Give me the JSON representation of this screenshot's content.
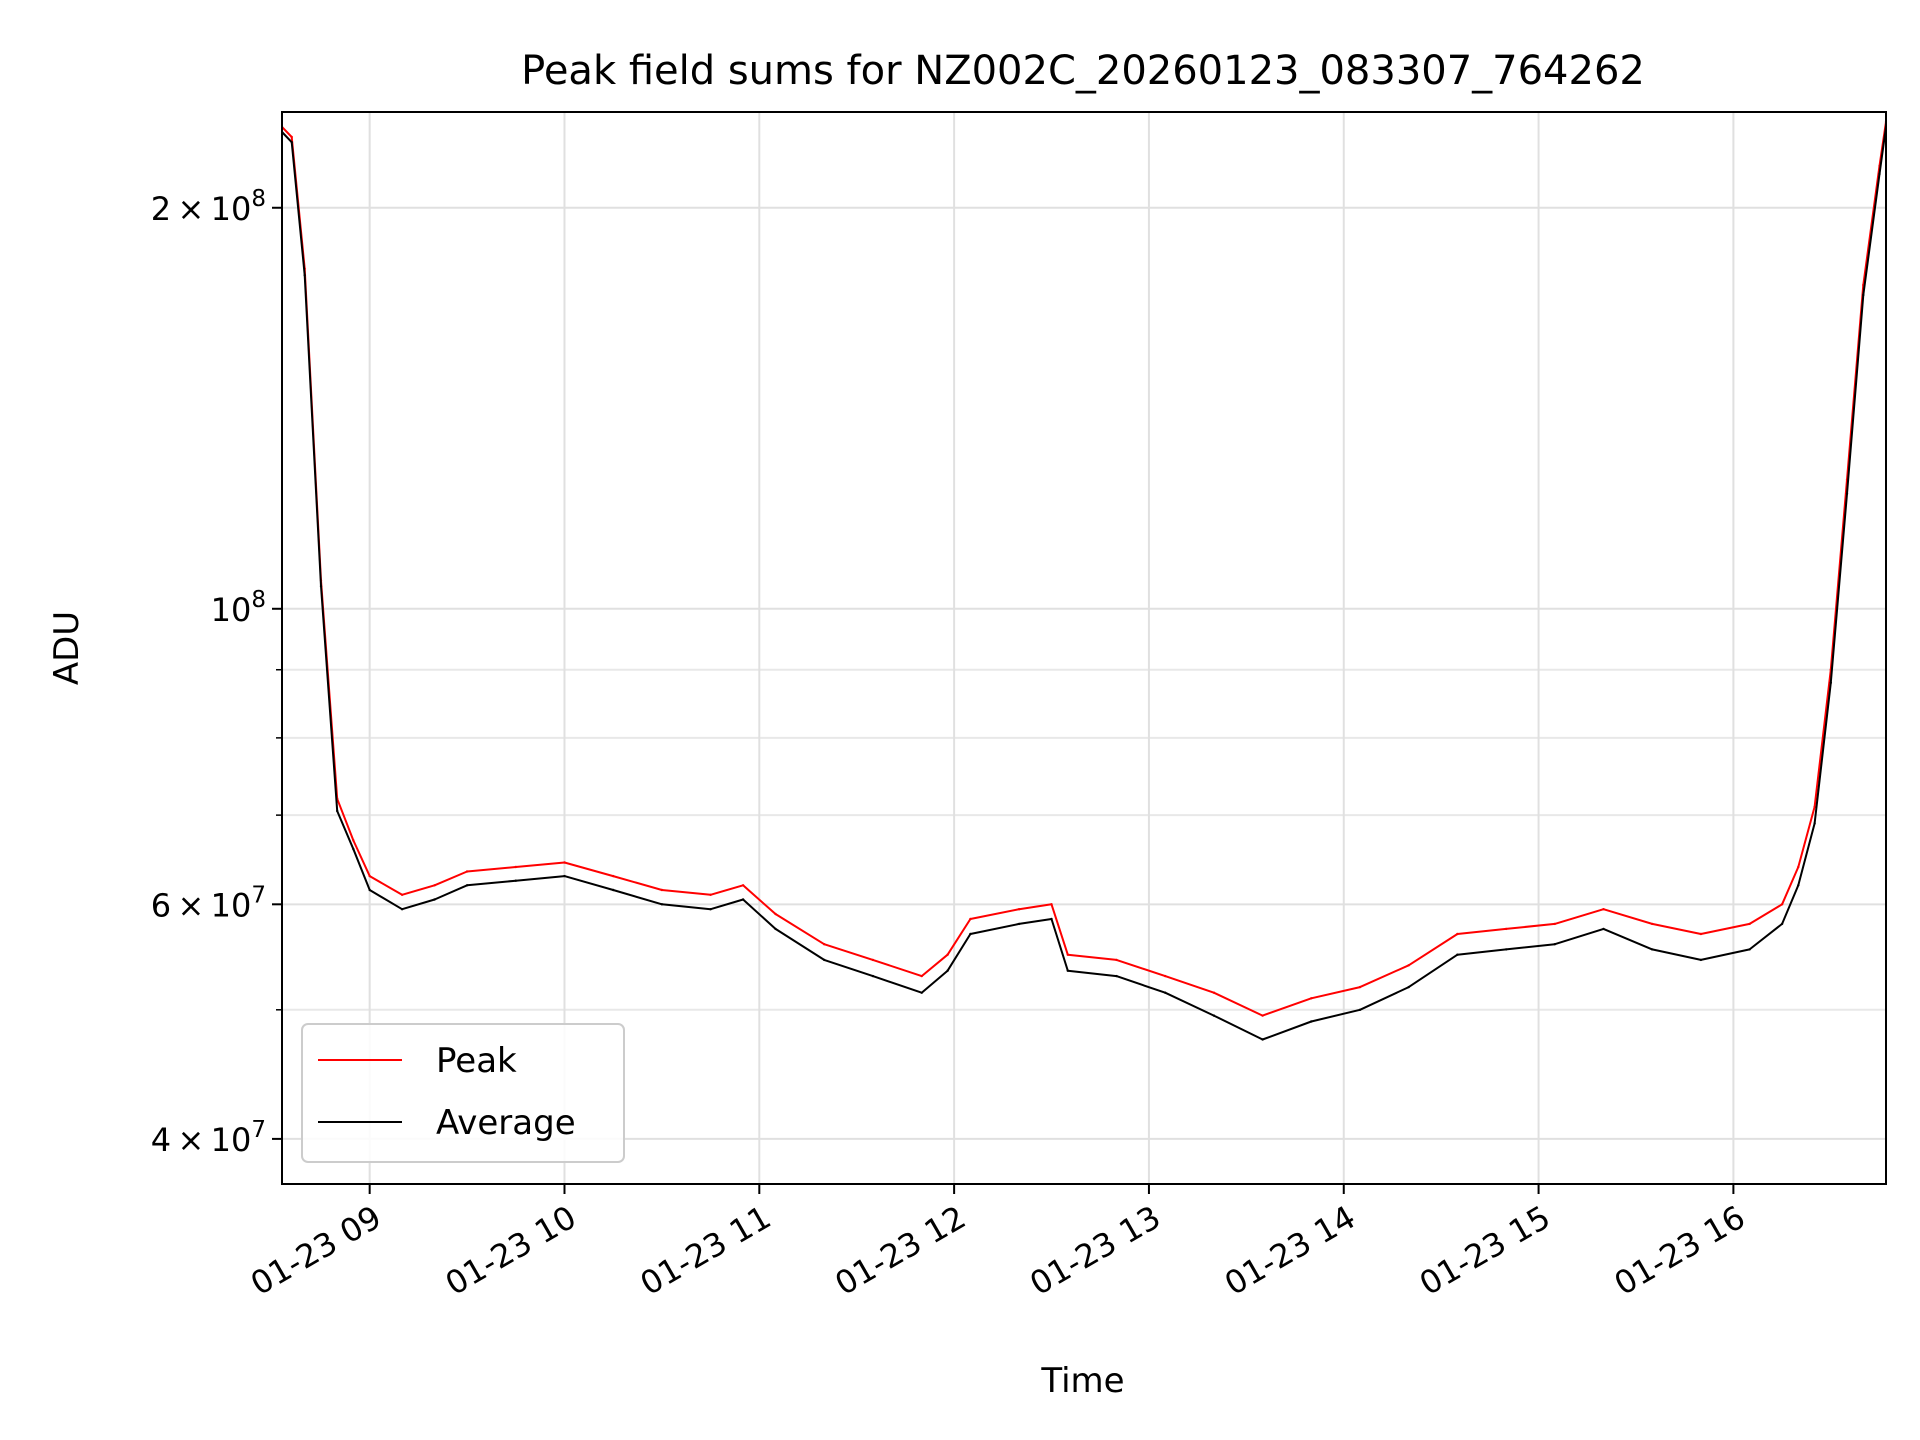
{
  "chart_data": {
    "type": "line",
    "title": "Peak field sums for NZ002C_20260123_083307_764262",
    "xlabel": "Time",
    "ylabel": "ADU",
    "yscale": "log",
    "ylim": [
      37000000,
      236000000
    ],
    "xlim": [
      "01-23 08:33",
      "01-23 16:47"
    ],
    "grid": true,
    "legend": "lower-left",
    "x_ticks": [
      "01-23 09",
      "01-23 10",
      "01-23 11",
      "01-23 12",
      "01-23 13",
      "01-23 14",
      "01-23 15",
      "01-23 16"
    ],
    "y_ticks": [
      {
        "value": 40000000,
        "mantissa": "4",
        "exponent": "7"
      },
      {
        "value": 60000000,
        "mantissa": "6",
        "exponent": "7"
      },
      {
        "value": 100000000,
        "mantissa": "",
        "exponent": "8"
      },
      {
        "value": 200000000,
        "mantissa": "2",
        "exponent": "8"
      }
    ],
    "y_minor_ticks": [
      50000000,
      70000000,
      80000000,
      90000000
    ],
    "x": [
      "01-23 08:33",
      "01-23 08:36",
      "01-23 08:40",
      "01-23 08:45",
      "01-23 08:50",
      "01-23 08:55",
      "01-23 09:00",
      "01-23 09:10",
      "01-23 09:20",
      "01-23 09:30",
      "01-23 09:45",
      "01-23 10:00",
      "01-23 10:15",
      "01-23 10:30",
      "01-23 10:45",
      "01-23 10:55",
      "01-23 11:05",
      "01-23 11:20",
      "01-23 11:35",
      "01-23 11:50",
      "01-23 11:58",
      "01-23 12:05",
      "01-23 12:20",
      "01-23 12:30",
      "01-23 12:35",
      "01-23 12:50",
      "01-23 13:05",
      "01-23 13:20",
      "01-23 13:35",
      "01-23 13:50",
      "01-23 14:05",
      "01-23 14:20",
      "01-23 14:35",
      "01-23 14:50",
      "01-23 15:05",
      "01-23 15:20",
      "01-23 15:35",
      "01-23 15:50",
      "01-23 16:05",
      "01-23 16:15",
      "01-23 16:20",
      "01-23 16:25",
      "01-23 16:30",
      "01-23 16:35",
      "01-23 16:40",
      "01-23 16:45",
      "01-23 16:47"
    ],
    "series": [
      {
        "name": "Peak",
        "color": "#ff0000",
        "values": [
          230000000,
          226000000,
          180000000,
          105000000,
          72000000,
          67000000,
          63000000,
          61000000,
          62000000,
          63500000,
          64000000,
          64500000,
          63000000,
          61500000,
          61000000,
          62000000,
          59000000,
          56000000,
          54500000,
          53000000,
          55000000,
          58500000,
          59500000,
          60000000,
          55000000,
          54500000,
          53000000,
          51500000,
          49500000,
          51000000,
          52000000,
          54000000,
          57000000,
          57500000,
          58000000,
          59500000,
          58000000,
          57000000,
          58000000,
          60000000,
          64000000,
          71000000,
          90000000,
          125000000,
          175000000,
          215000000,
          232000000
        ]
      },
      {
        "name": "Average",
        "color": "#000000",
        "values": [
          228000000,
          224000000,
          178000000,
          104000000,
          70500000,
          66000000,
          61500000,
          59500000,
          60500000,
          62000000,
          62500000,
          63000000,
          61500000,
          60000000,
          59500000,
          60500000,
          57500000,
          54500000,
          53000000,
          51500000,
          53500000,
          57000000,
          58000000,
          58500000,
          53500000,
          53000000,
          51500000,
          49500000,
          47500000,
          49000000,
          50000000,
          52000000,
          55000000,
          55500000,
          56000000,
          57500000,
          55500000,
          54500000,
          55500000,
          58000000,
          62000000,
          69000000,
          88000000,
          122000000,
          172000000,
          212000000,
          230000000
        ]
      }
    ]
  }
}
